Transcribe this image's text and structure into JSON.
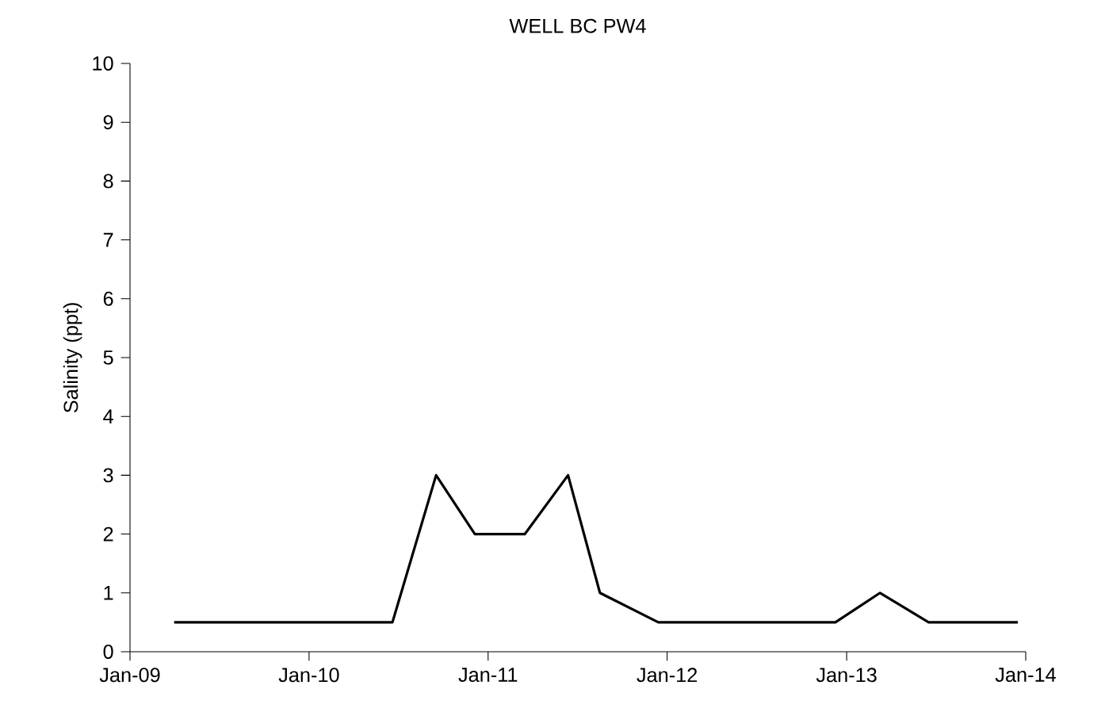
{
  "chart_data": {
    "type": "line",
    "title": "WELL BC PW4",
    "ylabel": "Salinity (ppt)",
    "x": [
      "2009-04-01",
      "2010-06-20",
      "2010-09-17",
      "2010-12-05",
      "2011-03-17",
      "2011-06-13",
      "2011-08-17",
      "2011-12-14",
      "2012-12-09",
      "2013-03-10",
      "2013-06-17",
      "2013-12-16"
    ],
    "series": [
      {
        "color": "#000000",
        "values": [
          0.5,
          0.5,
          3,
          2,
          2,
          3,
          1,
          0.5,
          0.5,
          1,
          0.5,
          0.5
        ]
      }
    ],
    "xlim": [
      "2009-01-01",
      "2014-01-01"
    ],
    "xticks": [
      {
        "value": "2009-01-01",
        "label": "Jan-09"
      },
      {
        "value": "2010-01-01",
        "label": "Jan-10"
      },
      {
        "value": "2011-01-01",
        "label": "Jan-11"
      },
      {
        "value": "2012-01-01",
        "label": "Jan-12"
      },
      {
        "value": "2013-01-01",
        "label": "Jan-13"
      },
      {
        "value": "2014-01-01",
        "label": "Jan-14"
      }
    ],
    "ylim": [
      0,
      10
    ],
    "yticks": [
      0,
      1,
      2,
      3,
      4,
      5,
      6,
      7,
      8,
      9,
      10
    ],
    "grid": false,
    "marker": "none",
    "line_style": "solid"
  }
}
